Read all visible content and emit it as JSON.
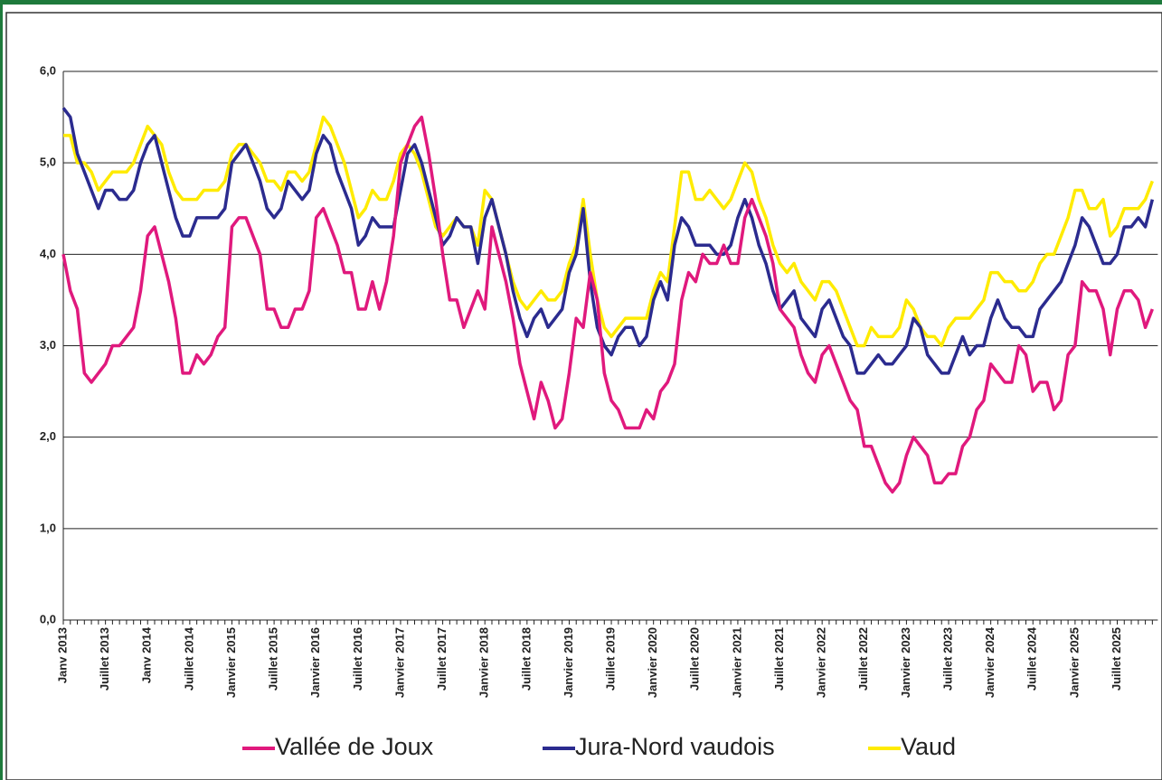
{
  "chart_data": {
    "type": "line",
    "categories": [
      "Janv 2013",
      null,
      null,
      null,
      null,
      null,
      "Juillet 2013",
      null,
      null,
      null,
      null,
      null,
      "Janv 2014",
      null,
      null,
      null,
      null,
      null,
      "Juillet 2014",
      null,
      null,
      null,
      null,
      null,
      "Janvier 2015",
      null,
      null,
      null,
      null,
      null,
      "Juillet 2015",
      null,
      null,
      null,
      null,
      null,
      "Janvier 2016",
      null,
      null,
      null,
      null,
      null,
      "Juillet 2016",
      null,
      null,
      null,
      null,
      null,
      "Janvier 2017",
      null,
      null,
      null,
      null,
      null,
      "Juillet 2017",
      null,
      null,
      null,
      null,
      null,
      "Janvier 2018",
      null,
      null,
      null,
      null,
      null,
      "Juillet 2018",
      null,
      null,
      null,
      null,
      null,
      "Janvier 2019",
      null,
      null,
      null,
      null,
      null,
      "Juillet 2019",
      null,
      null,
      null,
      null,
      null,
      "Janvier 2020",
      null,
      null,
      null,
      null,
      null,
      "Juillet 2020",
      null,
      null,
      null,
      null,
      null,
      "Janvier 2021",
      null,
      null,
      null,
      null,
      null,
      "Juillet 2021",
      null,
      null,
      null,
      null,
      null,
      "Janvier 2022",
      null,
      null,
      null,
      null,
      null,
      "Juillet 2022",
      null,
      null,
      null,
      null,
      null,
      "Janvier 2023",
      null,
      null,
      null,
      null,
      null,
      "Juillet 2023",
      null,
      null,
      null,
      null,
      null,
      "Janvier 2024",
      null,
      null,
      null,
      null,
      null,
      "Juillet 2024",
      null,
      null,
      null,
      null,
      null,
      "Janvier 2025",
      null,
      null,
      null,
      null,
      null,
      "Juillet 2025",
      null,
      null,
      null,
      null,
      null
    ],
    "series": [
      {
        "name": "Vallée de Joux",
        "color": "#e0197d",
        "values": [
          4.0,
          3.6,
          3.4,
          2.7,
          2.6,
          2.7,
          2.8,
          3.0,
          3.0,
          3.1,
          3.2,
          3.6,
          4.2,
          4.3,
          4.0,
          3.7,
          3.3,
          2.7,
          2.7,
          2.9,
          2.8,
          2.9,
          3.1,
          3.2,
          4.3,
          4.4,
          4.4,
          4.2,
          4.0,
          3.4,
          3.4,
          3.2,
          3.2,
          3.4,
          3.4,
          3.6,
          4.4,
          4.5,
          4.3,
          4.1,
          3.8,
          3.8,
          3.4,
          3.4,
          3.7,
          3.4,
          3.7,
          4.2,
          5.0,
          5.2,
          5.4,
          5.5,
          5.1,
          4.6,
          4.0,
          3.5,
          3.5,
          3.2,
          3.4,
          3.6,
          3.4,
          4.3,
          4.0,
          3.7,
          3.3,
          2.8,
          2.5,
          2.2,
          2.6,
          2.4,
          2.1,
          2.2,
          2.7,
          3.3,
          3.2,
          3.8,
          3.5,
          2.7,
          2.4,
          2.3,
          2.1,
          2.1,
          2.1,
          2.3,
          2.2,
          2.5,
          2.6,
          2.8,
          3.5,
          3.8,
          3.7,
          4.0,
          3.9,
          3.9,
          4.1,
          3.9,
          3.9,
          4.4,
          4.6,
          4.4,
          4.2,
          3.9,
          3.4,
          3.3,
          3.2,
          2.9,
          2.7,
          2.6,
          2.9,
          3.0,
          2.8,
          2.6,
          2.4,
          2.3,
          1.9,
          1.9,
          1.7,
          1.5,
          1.4,
          1.5,
          1.8,
          2.0,
          1.9,
          1.8,
          1.5,
          1.5,
          1.6,
          1.6,
          1.9,
          2.0,
          2.3,
          2.4,
          2.8,
          2.7,
          2.6,
          2.6,
          3.0,
          2.9,
          2.5,
          2.6,
          2.6,
          2.3,
          2.4,
          2.9,
          3.0,
          3.7,
          3.6,
          3.6,
          3.4,
          2.9,
          3.4,
          3.6,
          3.6,
          3.5,
          3.2,
          3.4
        ]
      },
      {
        "name": "Jura-Nord vaudois",
        "color": "#2b2b8f",
        "values": [
          5.6,
          5.5,
          5.1,
          4.9,
          4.7,
          4.5,
          4.7,
          4.7,
          4.6,
          4.6,
          4.7,
          5.0,
          5.2,
          5.3,
          5.0,
          4.7,
          4.4,
          4.2,
          4.2,
          4.4,
          4.4,
          4.4,
          4.4,
          4.5,
          5.0,
          5.1,
          5.2,
          5.0,
          4.8,
          4.5,
          4.4,
          4.5,
          4.8,
          4.7,
          4.6,
          4.7,
          5.1,
          5.3,
          5.2,
          4.9,
          4.7,
          4.5,
          4.1,
          4.2,
          4.4,
          4.3,
          4.3,
          4.3,
          4.7,
          5.1,
          5.2,
          5.0,
          4.7,
          4.4,
          4.1,
          4.2,
          4.4,
          4.3,
          4.3,
          3.9,
          4.4,
          4.6,
          4.3,
          4.0,
          3.6,
          3.3,
          3.1,
          3.3,
          3.4,
          3.2,
          3.3,
          3.4,
          3.8,
          4.0,
          4.5,
          3.7,
          3.2,
          3.0,
          2.9,
          3.1,
          3.2,
          3.2,
          3.0,
          3.1,
          3.5,
          3.7,
          3.5,
          4.1,
          4.4,
          4.3,
          4.1,
          4.1,
          4.1,
          4.0,
          4.0,
          4.1,
          4.4,
          4.6,
          4.4,
          4.1,
          3.9,
          3.6,
          3.4,
          3.5,
          3.6,
          3.3,
          3.2,
          3.1,
          3.4,
          3.5,
          3.3,
          3.1,
          3.0,
          2.7,
          2.7,
          2.8,
          2.9,
          2.8,
          2.8,
          2.9,
          3.0,
          3.3,
          3.2,
          2.9,
          2.8,
          2.7,
          2.7,
          2.9,
          3.1,
          2.9,
          3.0,
          3.0,
          3.3,
          3.5,
          3.3,
          3.2,
          3.2,
          3.1,
          3.1,
          3.4,
          3.5,
          3.6,
          3.7,
          3.9,
          4.1,
          4.4,
          4.3,
          4.1,
          3.9,
          3.9,
          4.0,
          4.3,
          4.3,
          4.4,
          4.3,
          4.6
        ]
      },
      {
        "name": "Vaud",
        "color": "#ffeb00",
        "values": [
          5.3,
          5.3,
          5.0,
          5.0,
          4.9,
          4.7,
          4.8,
          4.9,
          4.9,
          4.9,
          5.0,
          5.2,
          5.4,
          5.3,
          5.2,
          4.9,
          4.7,
          4.6,
          4.6,
          4.6,
          4.7,
          4.7,
          4.7,
          4.8,
          5.1,
          5.2,
          5.2,
          5.1,
          5.0,
          4.8,
          4.8,
          4.7,
          4.9,
          4.9,
          4.8,
          4.9,
          5.2,
          5.5,
          5.4,
          5.2,
          5.0,
          4.7,
          4.4,
          4.5,
          4.7,
          4.6,
          4.6,
          4.8,
          5.1,
          5.2,
          5.1,
          4.9,
          4.6,
          4.3,
          4.2,
          4.3,
          4.4,
          4.3,
          4.3,
          4.1,
          4.7,
          4.6,
          4.3,
          4.0,
          3.7,
          3.5,
          3.4,
          3.5,
          3.6,
          3.5,
          3.5,
          3.6,
          3.9,
          4.1,
          4.6,
          4.0,
          3.5,
          3.2,
          3.1,
          3.2,
          3.3,
          3.3,
          3.3,
          3.3,
          3.6,
          3.8,
          3.7,
          4.3,
          4.9,
          4.9,
          4.6,
          4.6,
          4.7,
          4.6,
          4.5,
          4.6,
          4.8,
          5.0,
          4.9,
          4.6,
          4.4,
          4.1,
          3.9,
          3.8,
          3.9,
          3.7,
          3.6,
          3.5,
          3.7,
          3.7,
          3.6,
          3.4,
          3.2,
          3.0,
          3.0,
          3.2,
          3.1,
          3.1,
          3.1,
          3.2,
          3.5,
          3.4,
          3.2,
          3.1,
          3.1,
          3.0,
          3.2,
          3.3,
          3.3,
          3.3,
          3.4,
          3.5,
          3.8,
          3.8,
          3.7,
          3.7,
          3.6,
          3.6,
          3.7,
          3.9,
          4.0,
          4.0,
          4.2,
          4.4,
          4.7,
          4.7,
          4.5,
          4.5,
          4.6,
          4.2,
          4.3,
          4.5,
          4.5,
          4.5,
          4.6,
          4.8
        ]
      }
    ],
    "ylim": [
      0,
      6
    ],
    "yticks": [
      {
        "value": 0,
        "label": "0,0"
      },
      {
        "value": 1,
        "label": "1,0"
      },
      {
        "value": 2,
        "label": "2,0"
      },
      {
        "value": 3,
        "label": "3,0"
      },
      {
        "value": 4,
        "label": "4,0"
      },
      {
        "value": 5,
        "label": "5,0"
      },
      {
        "value": 6,
        "label": "6,0"
      }
    ],
    "grid": true,
    "legend": "bottom"
  }
}
